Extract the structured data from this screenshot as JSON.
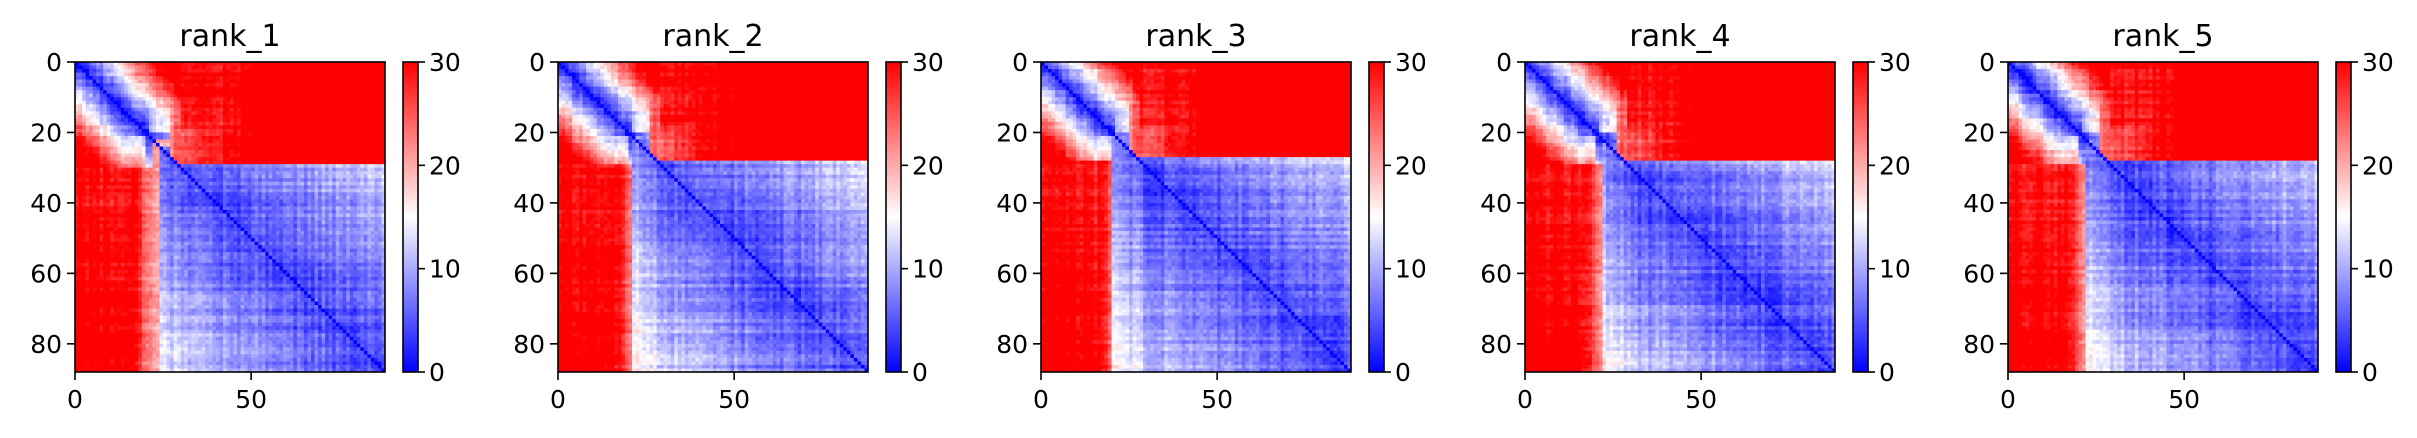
{
  "chart_data": [
    {
      "type": "heatmap",
      "title": "rank_1",
      "matrix_size": 88,
      "xlim": [
        0,
        88
      ],
      "ylim": [
        88,
        0
      ],
      "xticks": [
        0,
        50
      ],
      "yticks": [
        0,
        20,
        40,
        60,
        80
      ],
      "colorbar": {
        "min": 0,
        "max": 30,
        "ticks": [
          0,
          10,
          20,
          30
        ],
        "colors": [
          "#0000ff",
          "#ffffff",
          "#ff0000"
        ]
      },
      "structure": {
        "block_boundary": 29,
        "transition": 24,
        "seed": 1
      }
    },
    {
      "type": "heatmap",
      "title": "rank_2",
      "matrix_size": 88,
      "xlim": [
        0,
        88
      ],
      "ylim": [
        88,
        0
      ],
      "xticks": [
        0,
        50
      ],
      "yticks": [
        0,
        20,
        40,
        60,
        80
      ],
      "colorbar": {
        "min": 0,
        "max": 30,
        "ticks": [
          0,
          10,
          20,
          30
        ],
        "colors": [
          "#0000ff",
          "#ffffff",
          "#ff0000"
        ]
      },
      "structure": {
        "block_boundary": 28,
        "transition": 21,
        "seed": 2
      }
    },
    {
      "type": "heatmap",
      "title": "rank_3",
      "matrix_size": 88,
      "xlim": [
        0,
        88
      ],
      "ylim": [
        88,
        0
      ],
      "xticks": [
        0,
        50
      ],
      "yticks": [
        0,
        20,
        40,
        60,
        80
      ],
      "colorbar": {
        "min": 0,
        "max": 30,
        "ticks": [
          0,
          10,
          20,
          30
        ],
        "colors": [
          "#0000ff",
          "#ffffff",
          "#ff0000"
        ]
      },
      "structure": {
        "block_boundary": 27,
        "transition": 20,
        "seed": 3
      }
    },
    {
      "type": "heatmap",
      "title": "rank_4",
      "matrix_size": 88,
      "xlim": [
        0,
        88
      ],
      "ylim": [
        88,
        0
      ],
      "xticks": [
        0,
        50
      ],
      "yticks": [
        0,
        20,
        40,
        60,
        80
      ],
      "colorbar": {
        "min": 0,
        "max": 30,
        "ticks": [
          0,
          10,
          20,
          30
        ],
        "colors": [
          "#0000ff",
          "#ffffff",
          "#ff0000"
        ]
      },
      "structure": {
        "block_boundary": 28,
        "transition": 22,
        "seed": 4
      }
    },
    {
      "type": "heatmap",
      "title": "rank_5",
      "matrix_size": 88,
      "xlim": [
        0,
        88
      ],
      "ylim": [
        88,
        0
      ],
      "xticks": [
        0,
        50
      ],
      "yticks": [
        0,
        20,
        40,
        60,
        80
      ],
      "colorbar": {
        "min": 0,
        "max": 30,
        "ticks": [
          0,
          10,
          20,
          30
        ],
        "colors": [
          "#0000ff",
          "#ffffff",
          "#ff0000"
        ]
      },
      "structure": {
        "block_boundary": 28,
        "transition": 22,
        "seed": 5
      }
    }
  ]
}
